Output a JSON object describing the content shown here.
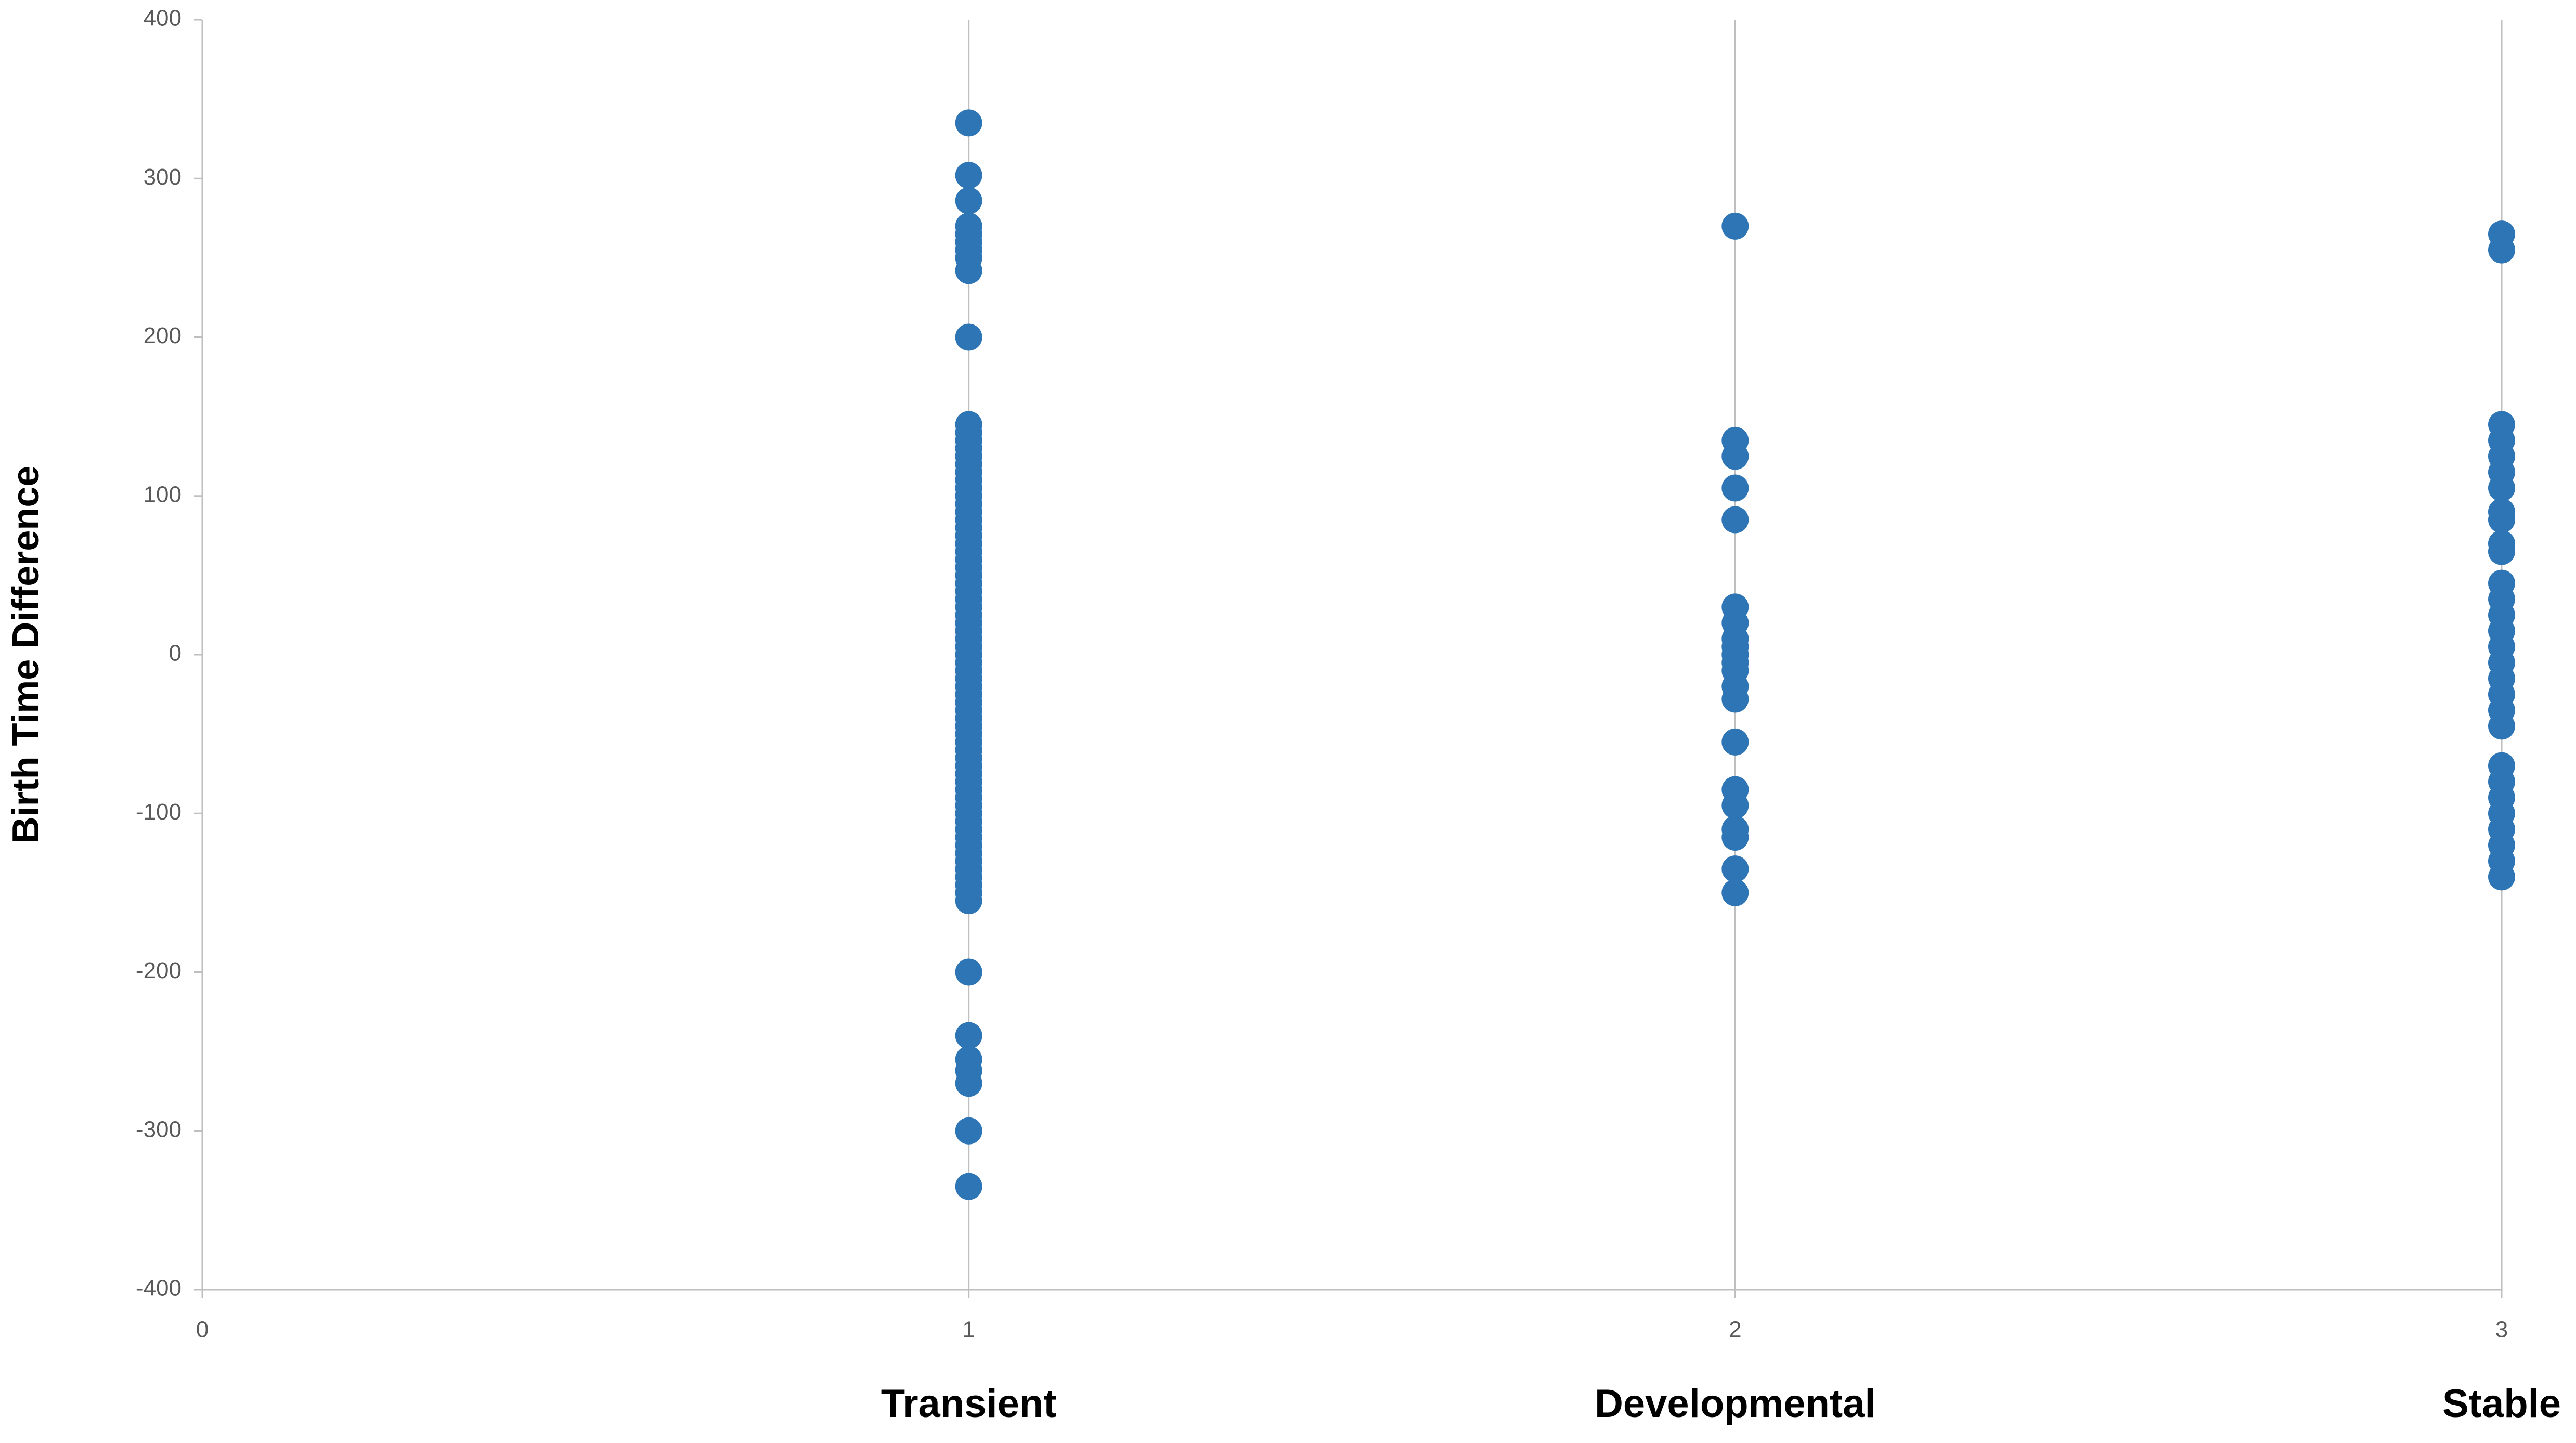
{
  "chart_data": {
    "type": "scatter",
    "y_label": "Birth Time Difference",
    "x_category_labels": [
      "Transient",
      "Developmental",
      "Stable"
    ],
    "color": "#2e75b6",
    "xlim": [
      0,
      3
    ],
    "xticks": [
      0,
      1,
      2,
      3
    ],
    "ylim": [
      -400,
      400
    ],
    "yticks": [
      -400,
      -300,
      -200,
      -100,
      0,
      100,
      200,
      300,
      400
    ],
    "xgrid": true,
    "x": [
      1,
      1,
      1,
      1,
      1,
      1,
      1,
      1,
      1,
      1,
      1,
      1,
      1,
      1,
      1,
      1,
      1,
      1,
      1,
      1,
      1,
      1,
      1,
      1,
      1,
      1,
      1,
      1,
      1,
      1,
      1,
      1,
      1,
      1,
      1,
      1,
      1,
      1,
      1,
      1,
      1,
      1,
      1,
      1,
      1,
      1,
      1,
      1,
      1,
      1,
      1,
      1,
      1,
      1,
      1,
      1,
      1,
      1,
      1,
      1,
      1,
      1,
      1,
      1,
      1,
      1,
      1,
      1,
      1,
      1,
      1,
      1,
      1,
      1,
      1,
      1,
      1,
      1,
      2,
      2,
      2,
      2,
      2,
      2,
      2,
      2,
      2,
      2,
      2,
      2,
      2,
      2,
      2,
      2,
      2,
      2,
      2,
      2,
      2,
      3,
      3,
      3,
      3,
      3,
      3,
      3,
      3,
      3,
      3,
      3,
      3,
      3,
      3,
      3,
      3,
      3,
      3,
      3,
      3,
      3,
      3,
      3,
      3,
      3,
      3,
      3,
      3,
      3
    ],
    "values": [
      335,
      302,
      286,
      270,
      265,
      260,
      255,
      250,
      242,
      200,
      145,
      140,
      135,
      130,
      125,
      120,
      115,
      110,
      105,
      100,
      95,
      90,
      85,
      80,
      75,
      70,
      65,
      60,
      55,
      50,
      45,
      40,
      35,
      30,
      25,
      20,
      15,
      10,
      5,
      0,
      -5,
      -10,
      -15,
      -20,
      -25,
      -30,
      -35,
      -40,
      -45,
      -50,
      -55,
      -60,
      -65,
      -70,
      -75,
      -80,
      -85,
      -90,
      -95,
      -100,
      -105,
      -110,
      -115,
      -120,
      -125,
      -130,
      -135,
      -140,
      -145,
      -150,
      -155,
      -200,
      -240,
      -255,
      -262,
      -270,
      -300,
      -335,
      270,
      135,
      125,
      105,
      85,
      30,
      20,
      10,
      5,
      0,
      -5,
      -10,
      -20,
      -28,
      -55,
      -85,
      -95,
      -110,
      -115,
      -135,
      -150,
      265,
      255,
      145,
      135,
      125,
      115,
      105,
      90,
      85,
      70,
      65,
      45,
      35,
      25,
      15,
      5,
      -5,
      -15,
      -25,
      -35,
      -45,
      -70,
      -80,
      -90,
      -100,
      -110,
      -120,
      -130,
      -140
    ]
  }
}
